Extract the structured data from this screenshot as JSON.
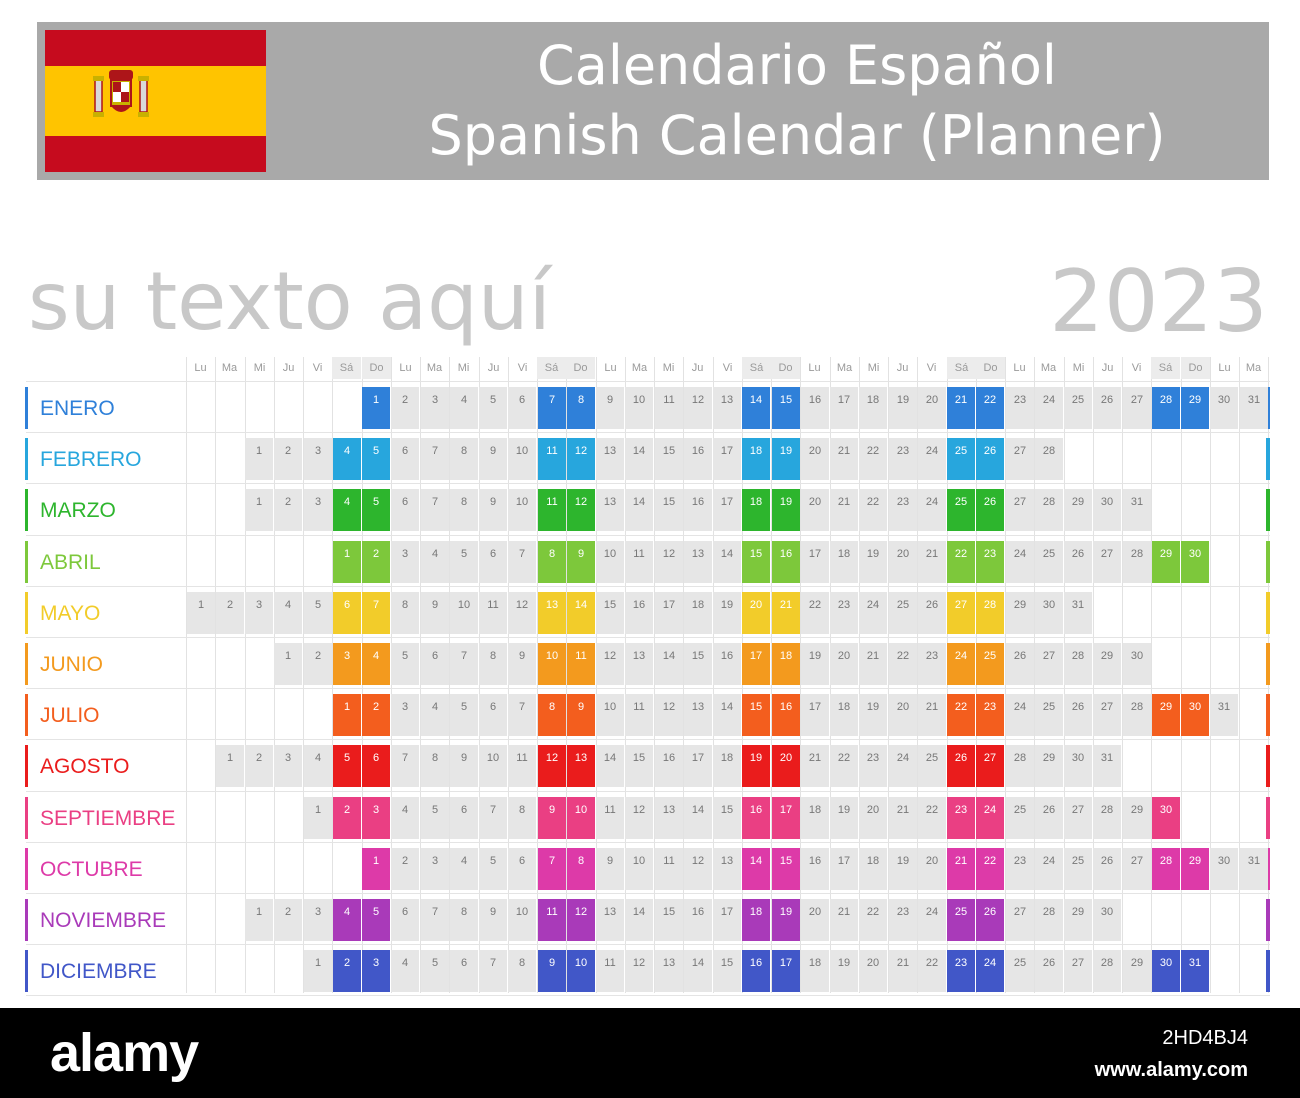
{
  "header": {
    "title_es": "Calendario Español",
    "title_en": "Spanish Calendar (Planner)",
    "flag_icon": "spain-flag-icon"
  },
  "placeholder_text": "su texto aquí",
  "year": "2023",
  "weekday_header": [
    "Lu",
    "Ma",
    "Mi",
    "Ju",
    "Vi",
    "Sá",
    "Do",
    "Lu",
    "Ma",
    "Mi",
    "Ju",
    "Vi",
    "Sá",
    "Do",
    "Lu",
    "Ma",
    "Mi",
    "Ju",
    "Vi",
    "Sá",
    "Do",
    "Lu",
    "Ma",
    "Mi",
    "Ju",
    "Vi",
    "Sá",
    "Do",
    "Lu",
    "Ma",
    "Mi",
    "Ju",
    "Vi",
    "Sá",
    "Do",
    "Lu",
    "Ma"
  ],
  "months": [
    {
      "name": "ENERO",
      "color": "#2f80d9",
      "start_col": 6,
      "days": 31
    },
    {
      "name": "FEBRERO",
      "color": "#27a6dd",
      "start_col": 2,
      "days": 28
    },
    {
      "name": "MARZO",
      "color": "#2db52d",
      "start_col": 2,
      "days": 31
    },
    {
      "name": "ABRIL",
      "color": "#7dc83b",
      "start_col": 5,
      "days": 30
    },
    {
      "name": "MAYO",
      "color": "#f2cc2a",
      "start_col": 0,
      "days": 31
    },
    {
      "name": "JUNIO",
      "color": "#f39a1e",
      "start_col": 3,
      "days": 30
    },
    {
      "name": "JULIO",
      "color": "#f35e1e",
      "start_col": 5,
      "days": 31
    },
    {
      "name": "AGOSTO",
      "color": "#ea1c1c",
      "start_col": 1,
      "days": 31
    },
    {
      "name": "SEPTIEMBRE",
      "color": "#ea3f83",
      "start_col": 4,
      "days": 30
    },
    {
      "name": "OCTUBRE",
      "color": "#dd3aa8",
      "start_col": 6,
      "days": 31
    },
    {
      "name": "NOVIEMBRE",
      "color": "#a93ab9",
      "start_col": 2,
      "days": 30
    },
    {
      "name": "DICIEMBRE",
      "color": "#4157c8",
      "start_col": 4,
      "days": 31
    }
  ],
  "watermark": {
    "logo": "alamy",
    "image_id": "2HD4BJ4",
    "url": "www.alamy.com"
  }
}
